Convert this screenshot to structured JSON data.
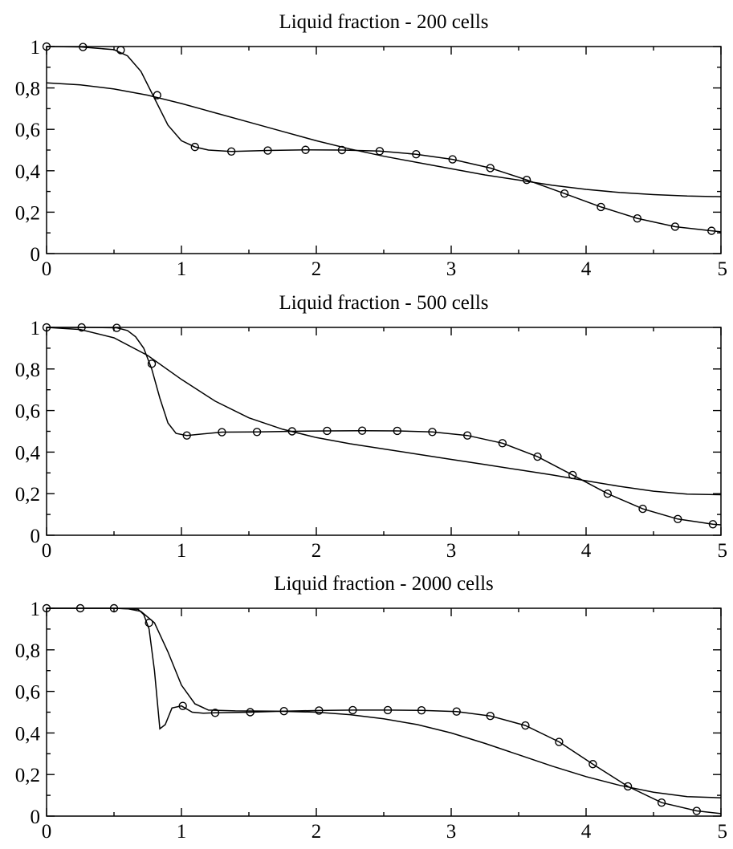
{
  "chart_data": [
    {
      "type": "line",
      "title": "Liquid fraction - 200 cells",
      "xlim": [
        0,
        5
      ],
      "ylim": [
        0,
        1
      ],
      "xticks": [
        0,
        1,
        2,
        3,
        4,
        5
      ],
      "xtick_labels": [
        "0",
        "1",
        "2",
        "3",
        "4",
        "5"
      ],
      "yticks": [
        0,
        0.2,
        0.4,
        0.6,
        0.8,
        1
      ],
      "ytick_labels": [
        "0",
        "0,2",
        "0,4",
        "0,6",
        "0,8",
        "1"
      ],
      "grid": false,
      "series": [
        {
          "style": "line-with-circles",
          "x": [
            0,
            0.25,
            0.5,
            0.6,
            0.7,
            0.8,
            0.9,
            1.0,
            1.1,
            1.2,
            1.37,
            1.64,
            1.92,
            2.19,
            2.47,
            2.74,
            3.01,
            3.29,
            3.56,
            3.84,
            4.11,
            4.38,
            4.66,
            4.93,
            5.0
          ],
          "y": [
            1,
            0.998,
            0.985,
            0.955,
            0.88,
            0.75,
            0.62,
            0.545,
            0.515,
            0.5,
            0.493,
            0.498,
            0.501,
            0.5,
            0.495,
            0.48,
            0.455,
            0.413,
            0.356,
            0.29,
            0.225,
            0.17,
            0.13,
            0.11,
            0.105
          ],
          "markers": {
            "x": [
              0,
              0.27,
              0.55,
              0.82,
              1.1,
              1.37,
              1.64,
              1.92,
              2.19,
              2.47,
              2.74,
              3.01,
              3.29,
              3.56,
              3.84,
              4.11,
              4.38,
              4.66,
              4.93
            ],
            "y": [
              1,
              0.998,
              0.983,
              0.765,
              0.515,
              0.493,
              0.498,
              0.501,
              0.5,
              0.495,
              0.48,
              0.455,
              0.413,
              0.356,
              0.29,
              0.225,
              0.17,
              0.13,
              0.11
            ]
          }
        },
        {
          "style": "line",
          "x": [
            0,
            0.25,
            0.5,
            0.75,
            1.0,
            1.25,
            1.5,
            1.75,
            2.0,
            2.25,
            2.5,
            2.75,
            3.0,
            3.25,
            3.5,
            3.75,
            4.0,
            4.25,
            4.5,
            4.75,
            5.0
          ],
          "y": [
            0.825,
            0.815,
            0.795,
            0.765,
            0.725,
            0.68,
            0.635,
            0.59,
            0.545,
            0.505,
            0.47,
            0.44,
            0.41,
            0.38,
            0.355,
            0.33,
            0.31,
            0.295,
            0.285,
            0.278,
            0.275
          ]
        }
      ]
    },
    {
      "type": "line",
      "title": "Liquid fraction - 500 cells",
      "xlim": [
        0,
        5
      ],
      "ylim": [
        0,
        1
      ],
      "xticks": [
        0,
        1,
        2,
        3,
        4,
        5
      ],
      "xtick_labels": [
        "0",
        "1",
        "2",
        "3",
        "4",
        "5"
      ],
      "yticks": [
        0,
        0.2,
        0.4,
        0.6,
        0.8,
        1
      ],
      "ytick_labels": [
        "0",
        "0,2",
        "0,4",
        "0,6",
        "0,8",
        "1"
      ],
      "grid": false,
      "series": [
        {
          "style": "line-with-circles",
          "x": [
            0,
            0.26,
            0.52,
            0.6,
            0.66,
            0.72,
            0.78,
            0.84,
            0.9,
            0.96,
            1.04,
            1.3,
            1.56,
            1.82,
            2.08,
            2.34,
            2.6,
            2.86,
            3.12,
            3.38,
            3.64,
            3.9,
            4.16,
            4.42,
            4.68,
            4.94,
            5.0
          ],
          "y": [
            1,
            1,
            0.998,
            0.985,
            0.955,
            0.9,
            0.8,
            0.66,
            0.54,
            0.49,
            0.48,
            0.496,
            0.497,
            0.5,
            0.502,
            0.503,
            0.502,
            0.497,
            0.48,
            0.443,
            0.378,
            0.29,
            0.2,
            0.127,
            0.078,
            0.053,
            0.05
          ],
          "markers": {
            "x": [
              0,
              0.26,
              0.52,
              0.78,
              1.04,
              1.3,
              1.56,
              1.82,
              2.08,
              2.34,
              2.6,
              2.86,
              3.12,
              3.38,
              3.64,
              3.9,
              4.16,
              4.42,
              4.68,
              4.94
            ],
            "y": [
              1,
              1,
              0.998,
              0.825,
              0.48,
              0.496,
              0.497,
              0.5,
              0.502,
              0.503,
              0.502,
              0.497,
              0.48,
              0.443,
              0.378,
              0.29,
              0.2,
              0.127,
              0.078,
              0.053
            ]
          }
        },
        {
          "style": "line",
          "x": [
            0,
            0.25,
            0.5,
            0.75,
            1.0,
            1.25,
            1.5,
            1.75,
            2.0,
            2.25,
            2.5,
            2.75,
            3.0,
            3.25,
            3.5,
            3.75,
            4.0,
            4.25,
            4.5,
            4.75,
            5.0
          ],
          "y": [
            1,
            0.99,
            0.95,
            0.865,
            0.75,
            0.645,
            0.565,
            0.51,
            0.47,
            0.44,
            0.415,
            0.39,
            0.365,
            0.34,
            0.315,
            0.29,
            0.262,
            0.235,
            0.212,
            0.198,
            0.195
          ]
        }
      ]
    },
    {
      "type": "line",
      "title": "Liquid fraction - 2000 cells",
      "xlim": [
        0,
        5
      ],
      "ylim": [
        0,
        1
      ],
      "xticks": [
        0,
        1,
        2,
        3,
        4,
        5
      ],
      "xtick_labels": [
        "0",
        "1",
        "2",
        "3",
        "4",
        "5"
      ],
      "yticks": [
        0,
        0.2,
        0.4,
        0.6,
        0.8,
        1
      ],
      "ytick_labels": [
        "0",
        "0,2",
        "0,4",
        "0,6",
        "0,8",
        "1"
      ],
      "grid": false,
      "series": [
        {
          "style": "line-with-circles",
          "x": [
            0,
            0.25,
            0.5,
            0.68,
            0.72,
            0.76,
            0.8,
            0.84,
            0.88,
            0.93,
            1.0,
            1.08,
            1.16,
            1.25,
            1.51,
            1.76,
            2.02,
            2.27,
            2.53,
            2.78,
            3.04,
            3.29,
            3.55,
            3.8,
            4.05,
            4.31,
            4.56,
            4.82,
            5.0
          ],
          "y": [
            1,
            1,
            1,
            0.995,
            0.97,
            0.9,
            0.7,
            0.42,
            0.44,
            0.52,
            0.53,
            0.5,
            0.495,
            0.497,
            0.5,
            0.505,
            0.508,
            0.51,
            0.51,
            0.509,
            0.503,
            0.482,
            0.436,
            0.357,
            0.25,
            0.143,
            0.065,
            0.025,
            0.012
          ],
          "markers": {
            "x": [
              0,
              0.25,
              0.5,
              0.76,
              1.01,
              1.25,
              1.51,
              1.76,
              2.02,
              2.27,
              2.53,
              2.78,
              3.04,
              3.29,
              3.55,
              3.8,
              4.05,
              4.31,
              4.56,
              4.82
            ],
            "y": [
              1,
              1,
              1,
              0.93,
              0.53,
              0.497,
              0.5,
              0.505,
              0.508,
              0.51,
              0.51,
              0.509,
              0.503,
              0.482,
              0.436,
              0.357,
              0.25,
              0.143,
              0.065,
              0.025
            ]
          }
        },
        {
          "style": "line",
          "x": [
            0,
            0.25,
            0.5,
            0.6,
            0.7,
            0.8,
            0.9,
            1.0,
            1.1,
            1.2,
            1.4,
            1.7,
            2.0,
            2.25,
            2.5,
            2.75,
            3.0,
            3.25,
            3.5,
            3.75,
            4.0,
            4.25,
            4.5,
            4.75,
            5.0
          ],
          "y": [
            1,
            1,
            1,
            0.998,
            0.985,
            0.93,
            0.79,
            0.63,
            0.54,
            0.51,
            0.506,
            0.505,
            0.5,
            0.488,
            0.468,
            0.44,
            0.4,
            0.35,
            0.295,
            0.24,
            0.19,
            0.148,
            0.115,
            0.094,
            0.088
          ]
        }
      ]
    }
  ]
}
